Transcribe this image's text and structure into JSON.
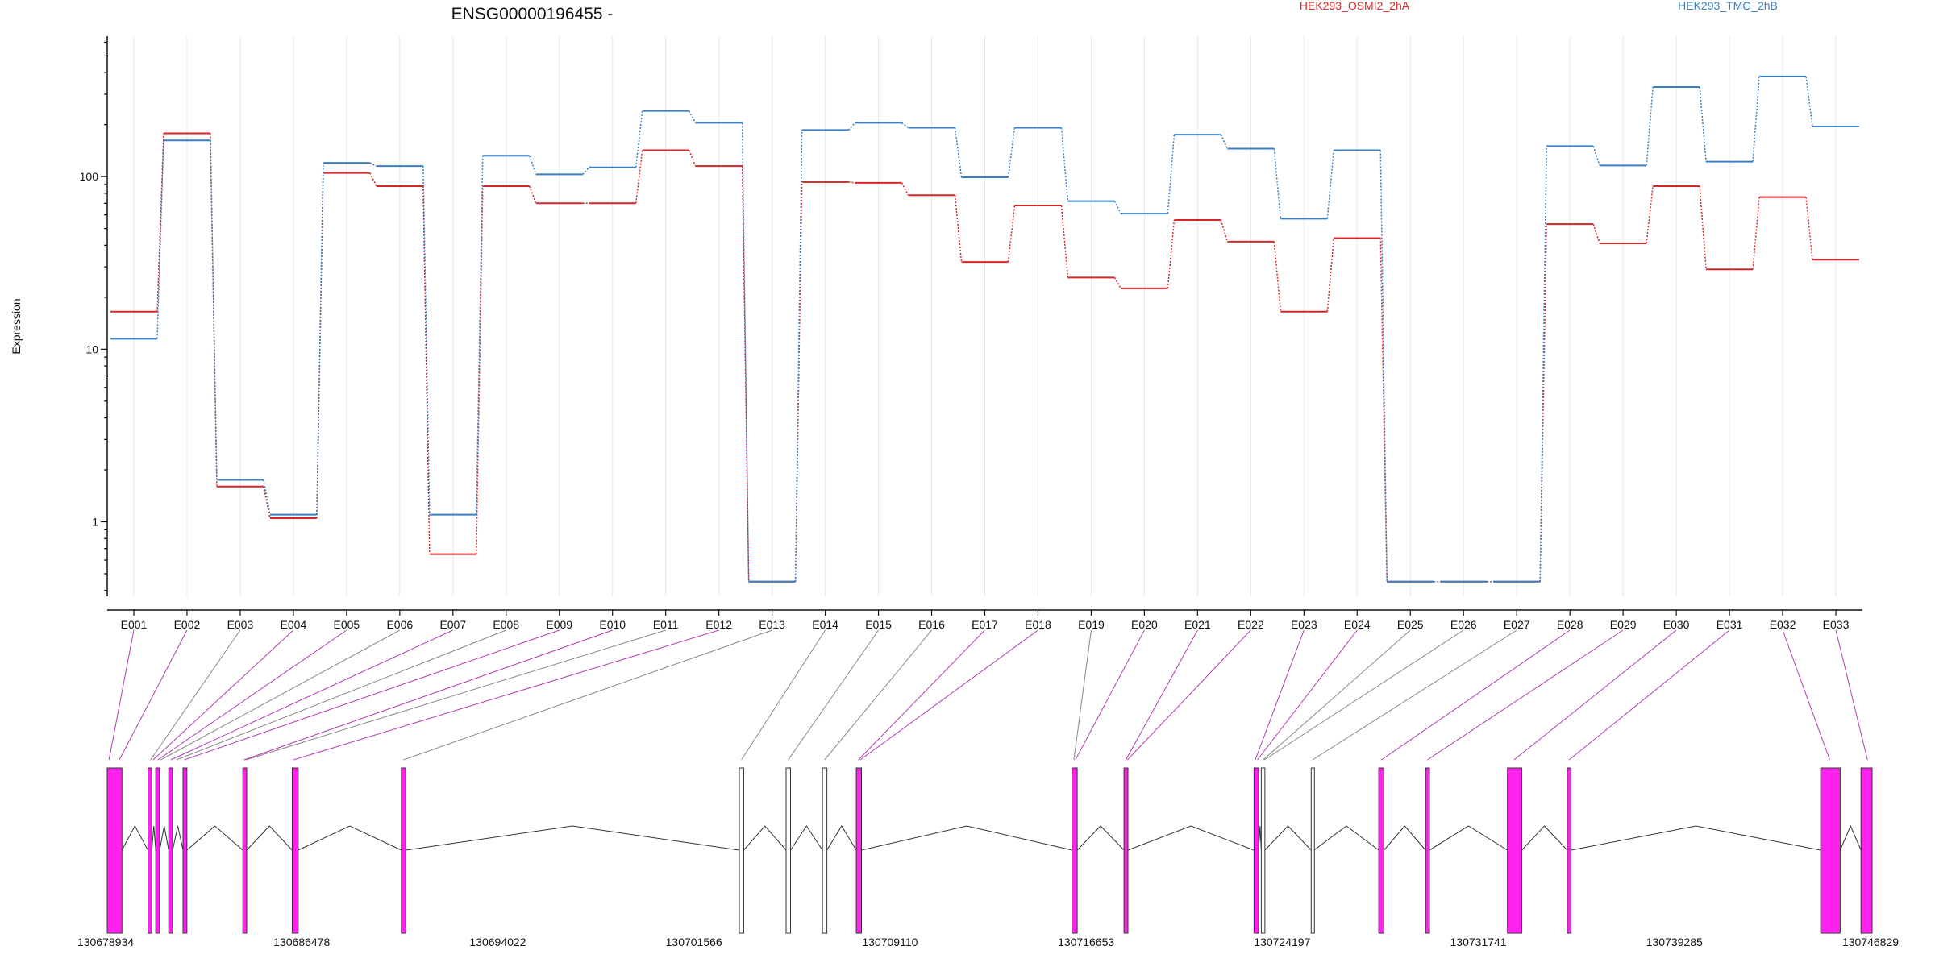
{
  "chart_data": {
    "type": "line",
    "title": "ENSG00000196455 -",
    "ylabel": "Expression",
    "yscale": "log",
    "ylim": [
      0.37,
      650
    ],
    "yticks": [
      1,
      10,
      100
    ],
    "ytick_labels": [
      "1",
      "10",
      "100"
    ],
    "categories": [
      "E001",
      "E002",
      "E003",
      "E004",
      "E005",
      "E006",
      "E007",
      "E008",
      "E009",
      "E010",
      "E011",
      "E012",
      "E013",
      "E014",
      "E015",
      "E016",
      "E017",
      "E018",
      "E019",
      "E020",
      "E021",
      "E022",
      "E023",
      "E024",
      "E025",
      "E026",
      "E027",
      "E028",
      "E029",
      "E030",
      "E031",
      "E032",
      "E033"
    ],
    "series": [
      {
        "name": "HEK293_OSMI2_2hA",
        "color": "#d62728",
        "values": [
          16.5,
          178,
          1.6,
          1.05,
          105,
          88,
          0.65,
          88,
          70,
          70,
          142,
          115,
          0.45,
          93,
          92,
          78,
          32,
          68,
          26,
          22.5,
          56,
          42,
          16.5,
          44,
          0.45,
          0.45,
          0.45,
          53,
          41,
          88,
          29,
          76,
          33
        ]
      },
      {
        "name": "HEK293_TMG_2hB",
        "color": "#3a7fc1",
        "values": [
          11.5,
          162,
          1.75,
          1.1,
          120,
          115,
          1.1,
          132,
          103,
          113,
          240,
          205,
          0.45,
          186,
          205,
          192,
          99,
          192,
          72,
          61,
          175,
          145,
          57,
          142,
          0.45,
          0.45,
          0.45,
          150,
          116,
          330,
          122,
          380,
          195
        ]
      }
    ],
    "gene_model": {
      "genomic_ticks": [
        "130678934",
        "130686478",
        "130694022",
        "130701566",
        "130709110",
        "130716653",
        "130724197",
        "130731741",
        "130739285",
        "130746829"
      ],
      "genomic_range": [
        130678934,
        130746829
      ],
      "exons": [
        {
          "start": 130678934,
          "end": 130679500,
          "highlight": true
        },
        {
          "start": 130680500,
          "end": 130680650,
          "highlight": true
        },
        {
          "start": 130680800,
          "end": 130680950,
          "highlight": true
        },
        {
          "start": 130681300,
          "end": 130681450,
          "highlight": true
        },
        {
          "start": 130681850,
          "end": 130682000,
          "highlight": true
        },
        {
          "start": 130684150,
          "end": 130684300,
          "highlight": true
        },
        {
          "start": 130686050,
          "end": 130686280,
          "highlight": true
        },
        {
          "start": 130690250,
          "end": 130690420,
          "highlight": true
        },
        {
          "start": 130703250,
          "end": 130703420,
          "highlight": false
        },
        {
          "start": 130705050,
          "end": 130705220,
          "highlight": false
        },
        {
          "start": 130706450,
          "end": 130706620,
          "highlight": false
        },
        {
          "start": 130707750,
          "end": 130707950,
          "highlight": true
        },
        {
          "start": 130716050,
          "end": 130716250,
          "highlight": true
        },
        {
          "start": 130718050,
          "end": 130718200,
          "highlight": true
        },
        {
          "start": 130723050,
          "end": 130723230,
          "highlight": true
        },
        {
          "start": 130723330,
          "end": 130723470,
          "highlight": false
        },
        {
          "start": 130725250,
          "end": 130725360,
          "highlight": false
        },
        {
          "start": 130727850,
          "end": 130728050,
          "highlight": true
        },
        {
          "start": 130729650,
          "end": 130729800,
          "highlight": true
        },
        {
          "start": 130732800,
          "end": 130733350,
          "highlight": true
        },
        {
          "start": 130735100,
          "end": 130735250,
          "highlight": true
        },
        {
          "start": 130744850,
          "end": 130745600,
          "highlight": true
        },
        {
          "start": 130746400,
          "end": 130746829,
          "highlight": true
        }
      ],
      "bin_links": [
        [
          130679000,
          true
        ],
        [
          130679400,
          true
        ],
        [
          130680600,
          false
        ],
        [
          130680700,
          true
        ],
        [
          130680880,
          true
        ],
        [
          130680990,
          false
        ],
        [
          130681380,
          true
        ],
        [
          130681600,
          false
        ],
        [
          130681900,
          true
        ],
        [
          130684200,
          true
        ],
        [
          130684270,
          false
        ],
        [
          130686100,
          true
        ],
        [
          130690330,
          false
        ],
        [
          130703330,
          false
        ],
        [
          130705130,
          false
        ],
        [
          130706530,
          false
        ],
        [
          130707830,
          true
        ],
        [
          130707900,
          true
        ],
        [
          130716120,
          false
        ],
        [
          130716180,
          true
        ],
        [
          130718120,
          true
        ],
        [
          130718180,
          true
        ],
        [
          130723100,
          true
        ],
        [
          130723180,
          true
        ],
        [
          130723400,
          false
        ],
        [
          130723450,
          false
        ],
        [
          130725300,
          false
        ],
        [
          130727950,
          true
        ],
        [
          130729720,
          true
        ],
        [
          130733050,
          true
        ],
        [
          130735170,
          true
        ],
        [
          130745200,
          true
        ],
        [
          130746650,
          true
        ]
      ]
    }
  }
}
